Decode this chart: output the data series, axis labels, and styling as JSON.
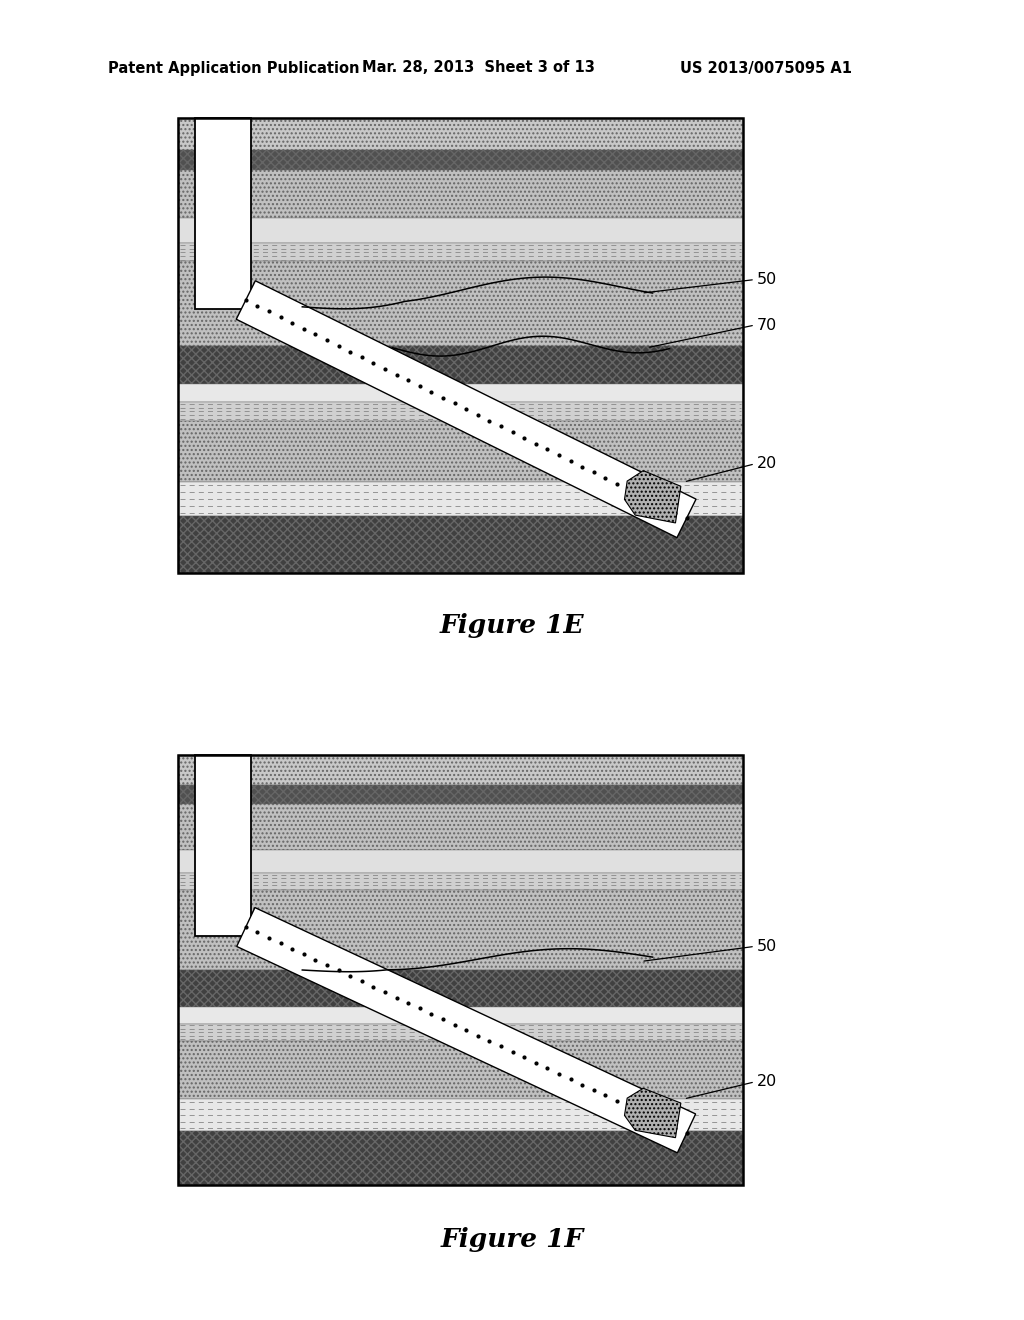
{
  "title_top": "Patent Application Publication",
  "title_date": "Mar. 28, 2013  Sheet 3 of 13",
  "title_patent": "US 2013/0075095 A1",
  "fig1e_label": "Figure 1E",
  "fig1f_label": "Figure 1F",
  "bg_color": "#ffffff"
}
